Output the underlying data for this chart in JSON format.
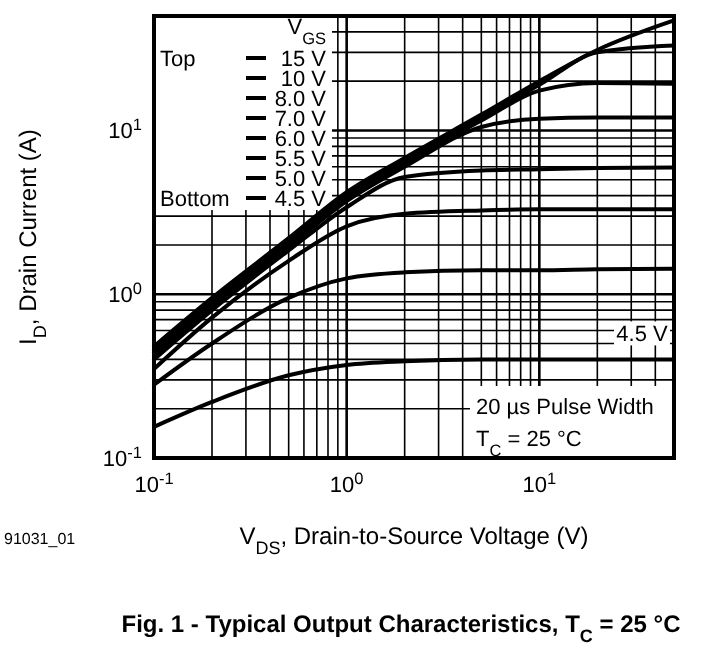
{
  "chart_data": {
    "type": "line",
    "title": "Fig. 1 - Typical Output Characteristics, T$_{C}$ = 25 °C",
    "xlabel": "V$_{DS}$, Drain-to-Source Voltage (V)",
    "ylabel": "I$_{D}$, Drain Current (A)",
    "legend_title": "V$_{GS}$",
    "legend": "top left",
    "log": "xy",
    "grid": true,
    "line_style": "solid",
    "x": [
      0.1,
      0.2,
      0.5,
      1,
      2,
      5,
      10,
      20,
      50
    ],
    "xlim": [
      0.1,
      50
    ],
    "ylim": [
      0.1,
      50
    ],
    "xticks": [
      {
        "value": 0.1,
        "label": "10$^{-1}$"
      },
      {
        "value": 0.2,
        "label": null
      },
      {
        "value": 0.3,
        "label": null
      },
      {
        "value": 0.4,
        "label": null
      },
      {
        "value": 0.5,
        "label": null
      },
      {
        "value": 0.6,
        "label": null
      },
      {
        "value": 0.7,
        "label": null
      },
      {
        "value": 0.8,
        "label": null
      },
      {
        "value": 0.9,
        "label": null
      },
      {
        "value": 1,
        "label": "10$^{0}$"
      },
      {
        "value": 2,
        "label": null
      },
      {
        "value": 3,
        "label": null
      },
      {
        "value": 4,
        "label": null
      },
      {
        "value": 5,
        "label": null
      },
      {
        "value": 6,
        "label": null
      },
      {
        "value": 7,
        "label": null
      },
      {
        "value": 8,
        "label": null
      },
      {
        "value": 9,
        "label": null
      },
      {
        "value": 10,
        "label": "10$^{1}$"
      },
      {
        "value": 20,
        "label": null
      },
      {
        "value": 30,
        "label": null
      },
      {
        "value": 40,
        "label": null
      }
    ],
    "yticks": [
      {
        "value": 0.1,
        "label": "10$^{-1}$"
      },
      {
        "value": 0.2,
        "label": null
      },
      {
        "value": 0.3,
        "label": null
      },
      {
        "value": 0.4,
        "label": null
      },
      {
        "value": 0.5,
        "label": null
      },
      {
        "value": 0.6,
        "label": null
      },
      {
        "value": 0.7,
        "label": null
      },
      {
        "value": 0.8,
        "label": null
      },
      {
        "value": 0.9,
        "label": null
      },
      {
        "value": 1,
        "label": "10$^{0}$"
      },
      {
        "value": 2,
        "label": null
      },
      {
        "value": 3,
        "label": null
      },
      {
        "value": 4,
        "label": null
      },
      {
        "value": 5,
        "label": null
      },
      {
        "value": 6,
        "label": null
      },
      {
        "value": 7,
        "label": null
      },
      {
        "value": 8,
        "label": null
      },
      {
        "value": 9,
        "label": null
      },
      {
        "value": 10,
        "label": "10$^{1}$"
      },
      {
        "value": 20,
        "label": null
      },
      {
        "value": 30,
        "label": null
      },
      {
        "value": 40,
        "label": null
      }
    ],
    "series": [
      {
        "name": "15 V",
        "color": "#000000",
        "values": [
          0.48,
          0.95,
          2.2,
          4.2,
          6.8,
          12.5,
          20,
          31,
          47
        ]
      },
      {
        "name": "10 V",
        "color": "#000000",
        "values": [
          0.46,
          0.9,
          2.1,
          4.0,
          6.5,
          12,
          19,
          30,
          33
        ]
      },
      {
        "name": "8.0 V",
        "color": "#000000",
        "values": [
          0.44,
          0.87,
          2.0,
          3.9,
          6.3,
          11.5,
          17.5,
          19.5,
          19.3
        ]
      },
      {
        "name": "7.0 V",
        "color": "#000000",
        "values": [
          0.42,
          0.83,
          1.95,
          3.7,
          6,
          10.5,
          11.8,
          12,
          12
        ]
      },
      {
        "name": "6.0 V",
        "color": "#000000",
        "values": [
          0.4,
          0.8,
          1.85,
          3.4,
          5.2,
          5.7,
          5.8,
          5.9,
          5.95
        ]
      },
      {
        "name": "5.5 V",
        "color": "#000000",
        "values": [
          0.35,
          0.72,
          1.6,
          2.6,
          3.1,
          3.25,
          3.3,
          3.3,
          3.3
        ]
      },
      {
        "name": "5.0 V",
        "color": "#000000",
        "values": [
          0.28,
          0.5,
          0.95,
          1.25,
          1.36,
          1.4,
          1.4,
          1.42,
          1.43
        ]
      },
      {
        "name": "4.5 V",
        "color": "#000000",
        "values": [
          0.155,
          0.22,
          0.32,
          0.37,
          0.39,
          0.4,
          0.4,
          0.4,
          0.4
        ]
      }
    ],
    "annotations": [
      "Top",
      "Bottom",
      "4.5 V",
      "20 µs Pulse Width",
      "T$_{C}$ = 25 °C",
      "91031_01"
    ]
  }
}
